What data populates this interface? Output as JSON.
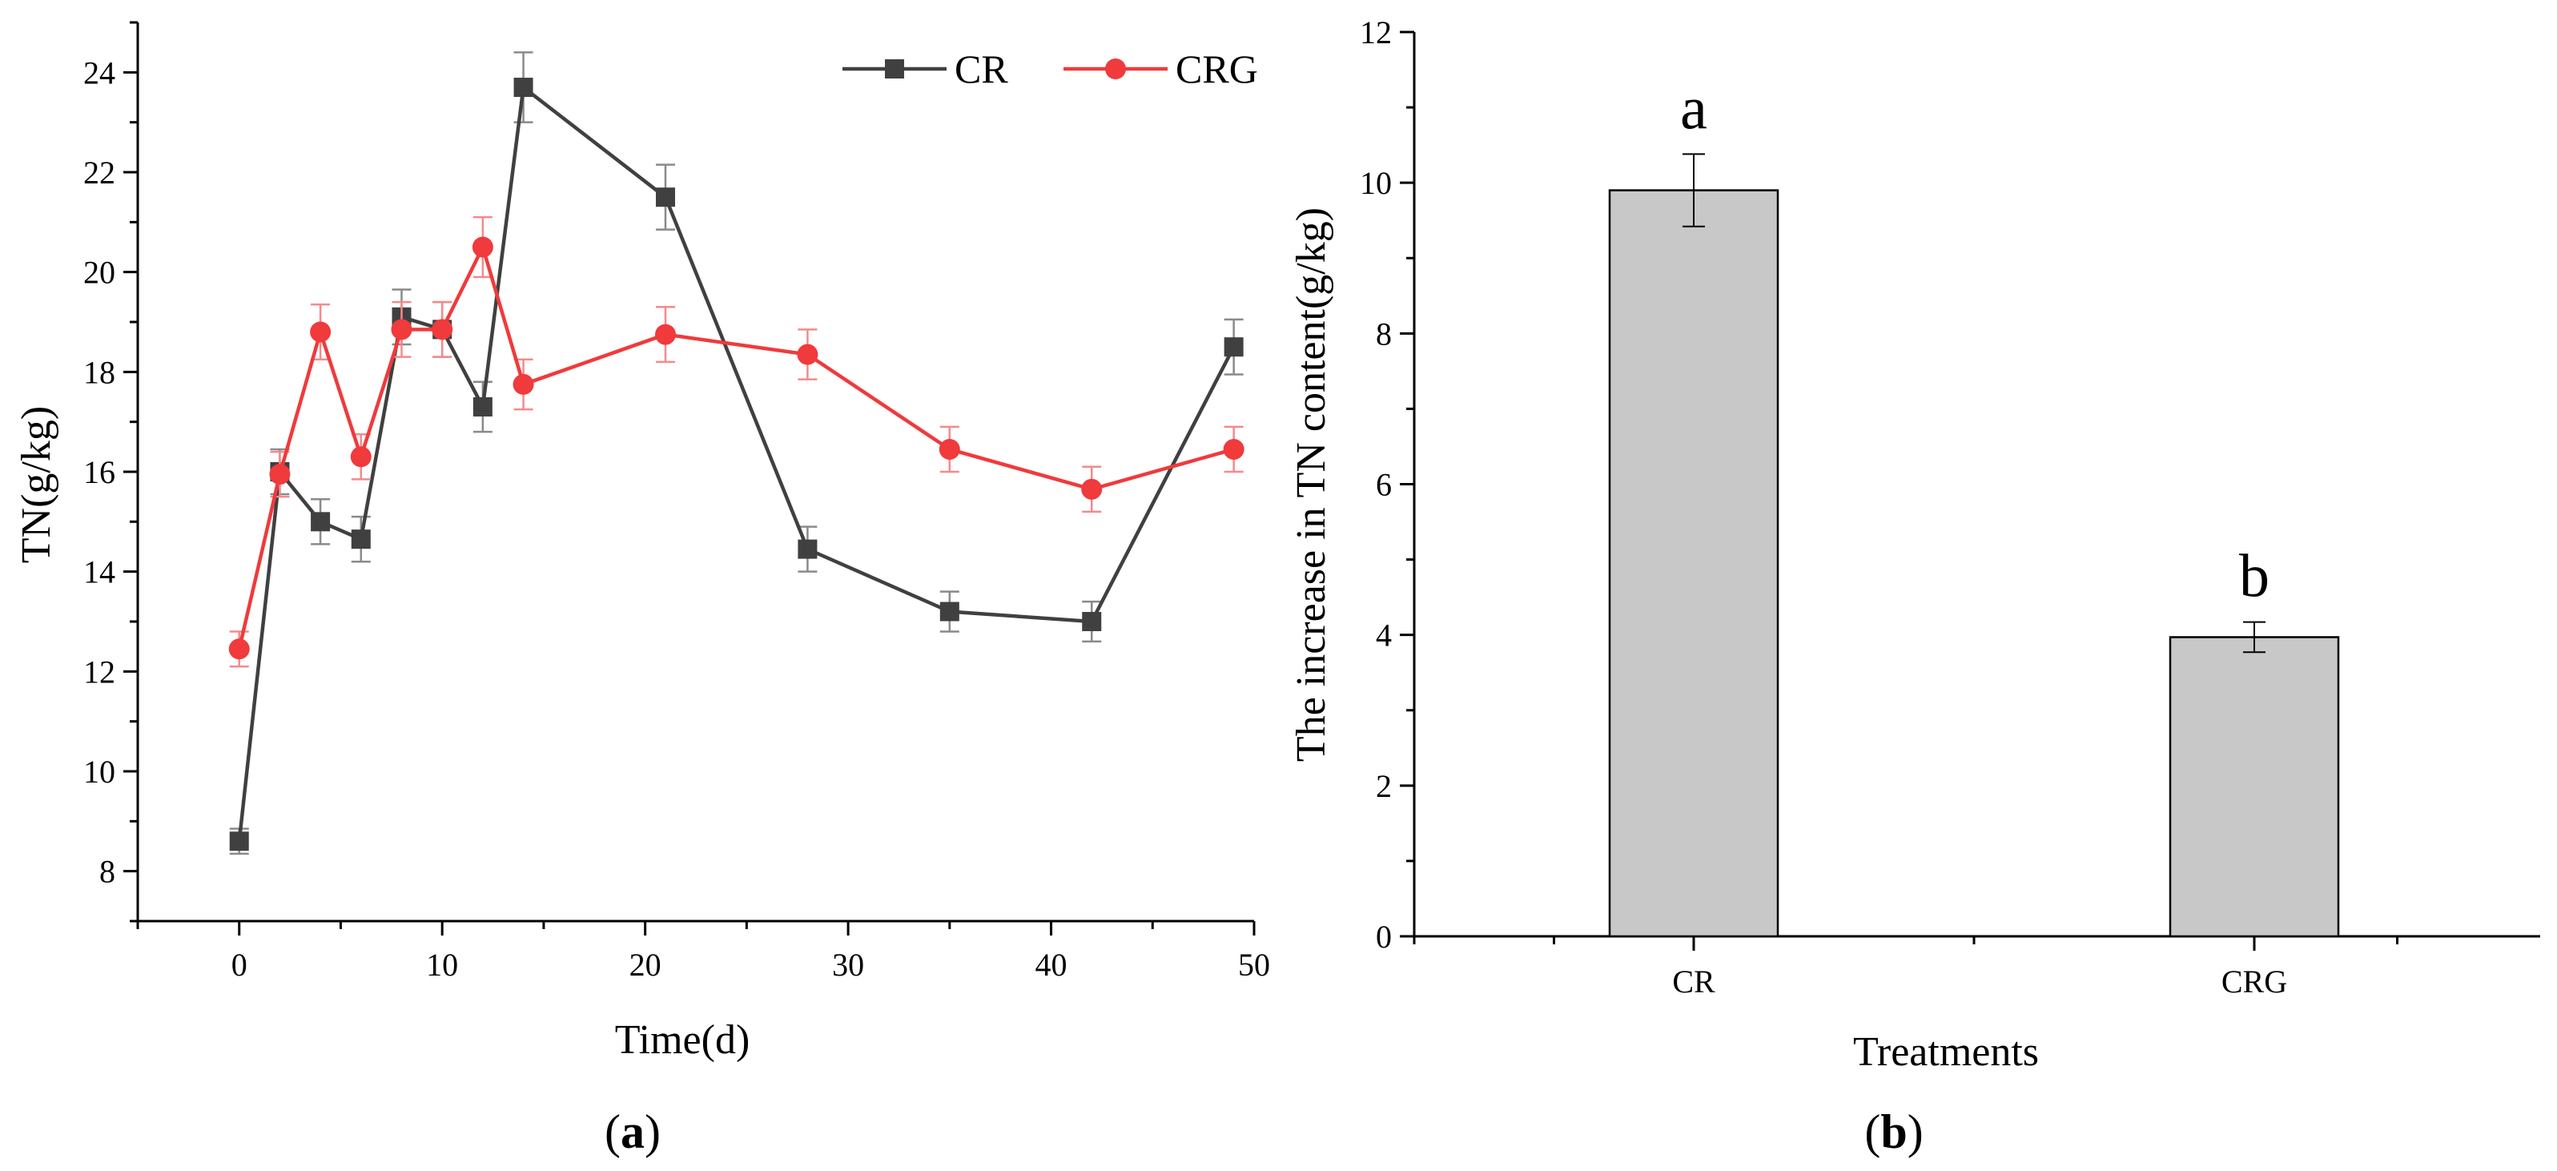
{
  "chart_data": [
    {
      "type": "line",
      "panel_label": "(a)",
      "panel_letter": "a",
      "xlabel": "Time(d)",
      "ylabel": "TN(g/kg)",
      "xlim": [
        -5,
        50
      ],
      "ylim": [
        7,
        25
      ],
      "xticks": [
        0,
        10,
        20,
        30,
        40,
        50
      ],
      "yticks": [
        8,
        10,
        12,
        14,
        16,
        18,
        20,
        22,
        24
      ],
      "legend_position": "top-right",
      "x": [
        0,
        2,
        4,
        6,
        8,
        10,
        12,
        14,
        21,
        28,
        35,
        42,
        49
      ],
      "series": [
        {
          "name": "CR",
          "color": "#404040",
          "marker": "square",
          "values": [
            8.6,
            16.0,
            15.0,
            14.65,
            19.1,
            18.85,
            17.3,
            23.7,
            21.5,
            14.45,
            13.2,
            13.0,
            18.5
          ],
          "errors": [
            0.25,
            0.45,
            0.45,
            0.45,
            0.55,
            0.55,
            0.5,
            0.7,
            0.65,
            0.45,
            0.4,
            0.4,
            0.55
          ]
        },
        {
          "name": "CRG",
          "color": "#f03a3c",
          "marker": "circle",
          "values": [
            12.45,
            15.95,
            18.8,
            16.3,
            18.85,
            18.85,
            20.5,
            17.75,
            18.75,
            18.35,
            16.45,
            15.65,
            16.45
          ],
          "errors": [
            0.35,
            0.45,
            0.55,
            0.45,
            0.55,
            0.55,
            0.6,
            0.5,
            0.55,
            0.5,
            0.45,
            0.45,
            0.45
          ]
        }
      ]
    },
    {
      "type": "bar",
      "panel_label": "(b)",
      "panel_letter": "b",
      "xlabel": "Treatments",
      "ylabel": "The increase in TN content(g/kg)",
      "ylim": [
        0,
        12
      ],
      "yticks": [
        0,
        2,
        4,
        6,
        8,
        10,
        12
      ],
      "categories": [
        "CR",
        "CRG"
      ],
      "values": [
        9.9,
        3.97
      ],
      "errors": [
        0.48,
        0.2
      ],
      "significance_labels": [
        "a",
        "b"
      ],
      "bar_color": "#c8c8c8"
    }
  ]
}
